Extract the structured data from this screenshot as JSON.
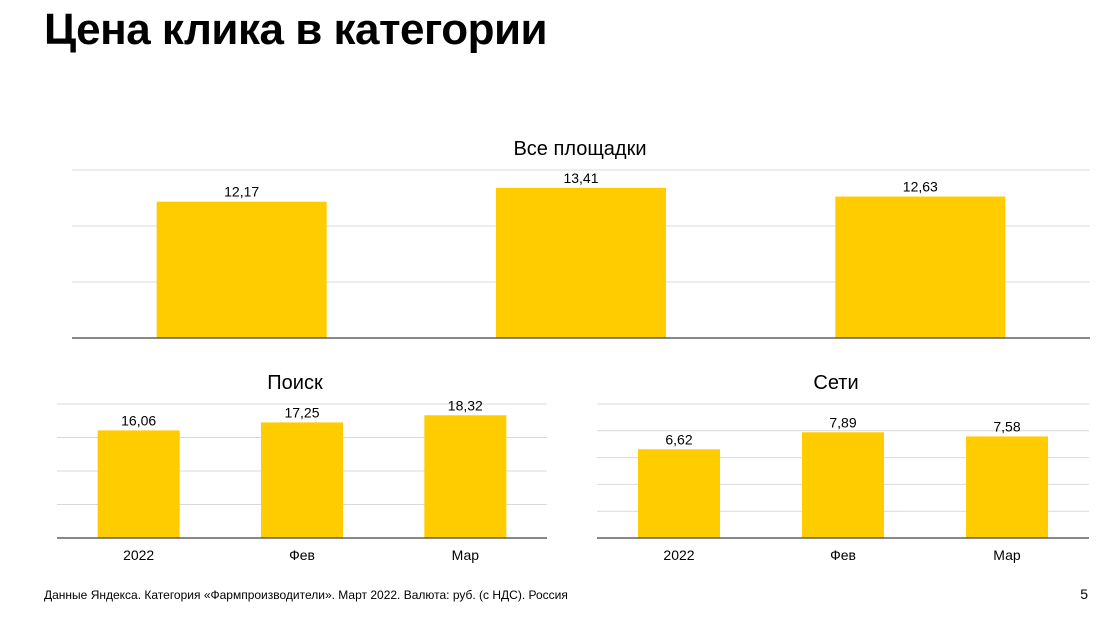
{
  "page": {
    "title": "Цена клика в категории",
    "footer": "Данные Яндекса. Категория «Фармпроизводители». Март 2022. Валюта: руб. (с НДС). Россия",
    "page_number": "5"
  },
  "colors": {
    "bar": "#FFCC00",
    "grid": "#D9D9D9",
    "axis": "#404040"
  },
  "chart_data": [
    {
      "type": "bar",
      "title": "Все площадки",
      "categories": [
        "",
        "",
        ""
      ],
      "values": [
        12.17,
        13.41,
        12.63
      ],
      "labels": [
        "12,17",
        "13,41",
        "12,63"
      ],
      "ylim": [
        0,
        15
      ],
      "grid": true
    },
    {
      "type": "bar",
      "title": "Поиск",
      "categories": [
        "2022",
        "Фев",
        "Мар"
      ],
      "values": [
        16.06,
        17.25,
        18.32
      ],
      "labels": [
        "16,06",
        "17,25",
        "18,32"
      ],
      "ylim": [
        0,
        20
      ],
      "grid": true
    },
    {
      "type": "bar",
      "title": "Сети",
      "categories": [
        "2022",
        "Фев",
        "Мар"
      ],
      "values": [
        6.62,
        7.89,
        7.58
      ],
      "labels": [
        "6,62",
        "7,89",
        "7,58"
      ],
      "ylim": [
        0,
        10
      ],
      "grid": true
    }
  ]
}
